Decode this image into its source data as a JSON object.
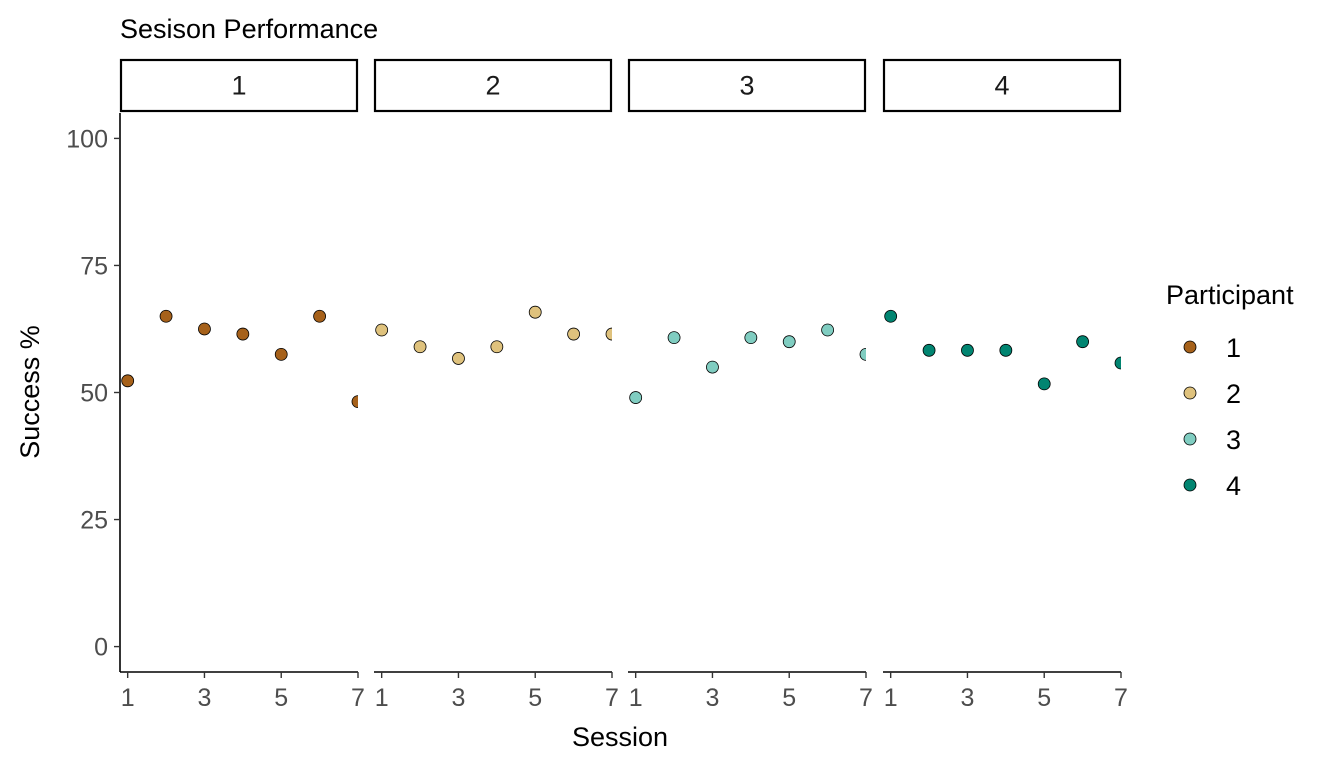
{
  "chart_data": {
    "type": "scatter",
    "title": "Sesison Performance",
    "xlabel": "Session",
    "ylabel": "Success %",
    "xlim": [
      0.8,
      7
    ],
    "ylim": [
      -5,
      105
    ],
    "x_ticks": [
      1,
      3,
      5,
      7
    ],
    "y_ticks": [
      0,
      25,
      50,
      75,
      100
    ],
    "grid": false,
    "facet_variable": "Participant",
    "legend": {
      "title": "Participant",
      "position": "right"
    },
    "panels": [
      {
        "label": "1",
        "color": "#a6611a",
        "x": [
          1,
          2,
          3,
          4,
          5,
          6,
          7
        ],
        "y": [
          52.3,
          65,
          62.5,
          61.5,
          57.5,
          65,
          48.2
        ]
      },
      {
        "label": "2",
        "color": "#dfc27d",
        "x": [
          1,
          2,
          3,
          4,
          5,
          6,
          7
        ],
        "y": [
          62.3,
          59,
          56.7,
          59,
          65.8,
          61.5,
          61.5
        ]
      },
      {
        "label": "3",
        "color": "#80cdc1",
        "x": [
          1,
          2,
          3,
          4,
          5,
          6,
          7
        ],
        "y": [
          49,
          60.8,
          55,
          60.8,
          60,
          62.3,
          57.5
        ]
      },
      {
        "label": "4",
        "color": "#018571",
        "x": [
          1,
          2,
          3,
          4,
          5,
          6,
          7
        ],
        "y": [
          65,
          58.3,
          58.3,
          58.3,
          51.7,
          60,
          55.8
        ]
      }
    ]
  }
}
